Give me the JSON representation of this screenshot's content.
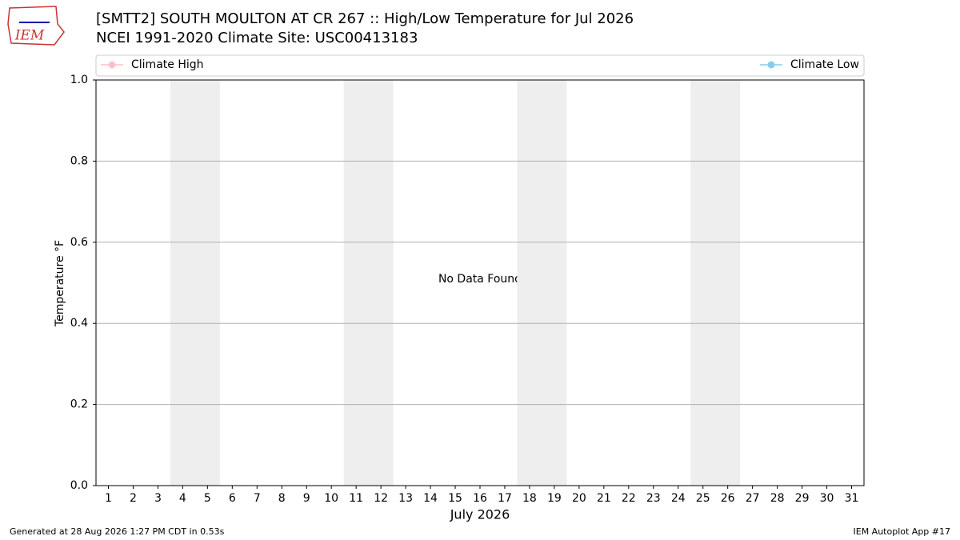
{
  "chart_data": {
    "type": "line",
    "title": "[SMTT2] SOUTH MOULTON AT CR 267 :: High/Low Temperature for Jul 2026",
    "subtitle": "NCEI 1991-2020 Climate Site: USC00413183",
    "x_label": "July 2026",
    "y_label": "Temperature °F",
    "annotation": "No Data Found",
    "x": [
      1,
      2,
      3,
      4,
      5,
      6,
      7,
      8,
      9,
      10,
      11,
      12,
      13,
      14,
      15,
      16,
      17,
      18,
      19,
      20,
      21,
      22,
      23,
      24,
      25,
      26,
      27,
      28,
      29,
      30,
      31
    ],
    "xlim": [
      0.5,
      31.5
    ],
    "series": [
      {
        "name": "Climate High",
        "color": "#ffc0cb",
        "values": [
          null,
          null,
          null,
          null,
          null,
          null,
          null,
          null,
          null,
          null,
          null,
          null,
          null,
          null,
          null,
          null,
          null,
          null,
          null,
          null,
          null,
          null,
          null,
          null,
          null,
          null,
          null,
          null,
          null,
          null,
          null
        ]
      },
      {
        "name": "Climate Low",
        "color": "#87ceeb",
        "values": [
          null,
          null,
          null,
          null,
          null,
          null,
          null,
          null,
          null,
          null,
          null,
          null,
          null,
          null,
          null,
          null,
          null,
          null,
          null,
          null,
          null,
          null,
          null,
          null,
          null,
          null,
          null,
          null,
          null,
          null,
          null
        ]
      }
    ],
    "ylim": [
      0,
      1
    ],
    "yticks": [
      {
        "value": 0,
        "label": "0.0"
      },
      0.2,
      0.4,
      0.6,
      0.8,
      {
        "value": 1,
        "label": "1.0"
      }
    ],
    "grid": true,
    "shaded_spans": [
      [
        3.5,
        5.5
      ],
      [
        10.5,
        12.5
      ],
      [
        17.5,
        19.5
      ],
      [
        24.5,
        26.5
      ]
    ],
    "legend": "top"
  },
  "logo": "IEM",
  "footer": {
    "left": "Generated at 28 Aug 2026 1:27 PM CDT in 0.53s",
    "right": "IEM Autoplot App #17"
  }
}
